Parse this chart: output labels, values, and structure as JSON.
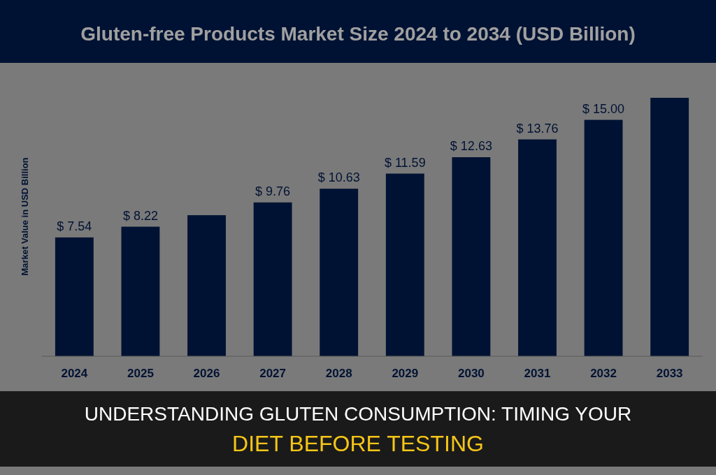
{
  "chart_data": {
    "type": "bar",
    "title": "Gluten-free Products Market Size 2024 to 2034 (USD Billion)",
    "ylabel": "Market Value in USD Billion",
    "categories": [
      "2024",
      "2025",
      "2026",
      "2027",
      "2028",
      "2029",
      "2030",
      "2031",
      "2032",
      "2033"
    ],
    "values": [
      7.54,
      8.22,
      8.95,
      9.76,
      10.63,
      11.59,
      12.63,
      13.76,
      15.0,
      16.4
    ],
    "value_labels": [
      "$ 7.54",
      "$ 8.22",
      null,
      "$ 9.76",
      "$ 10.63",
      "$ 11.59",
      "$ 12.63",
      "$ 13.76",
      "$ 15.00",
      null
    ],
    "color": "#001233",
    "annotations": [
      "UNDERSTANDING GLUTEN CONSUMPTION: TIMING YOUR DIET BEFORE TESTING"
    ]
  }
}
